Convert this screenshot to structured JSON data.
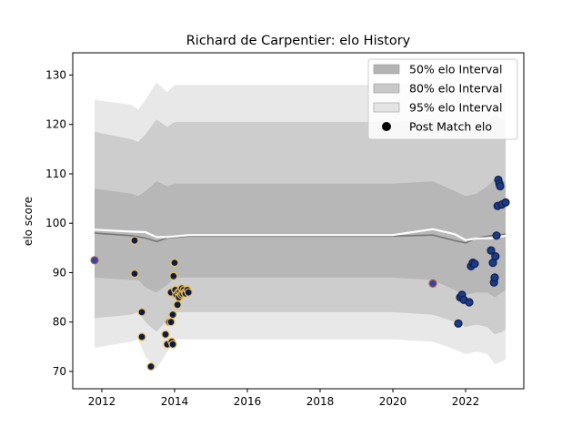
{
  "chart_data": {
    "type": "scatter",
    "title": "Richard de Carpentier: elo History",
    "xlabel": "",
    "ylabel": "elo score",
    "xlim": [
      2011.2,
      2023.6
    ],
    "ylim": [
      66.5,
      134.5
    ],
    "x_ticks": [
      2012,
      2014,
      2016,
      2018,
      2020,
      2022
    ],
    "y_ticks": [
      70,
      80,
      90,
      100,
      110,
      120,
      130
    ],
    "grid": false,
    "legend_position": "top-right",
    "legend": [
      {
        "label": "50% elo Interval",
        "kind": "band",
        "color": "#b3b3b3"
      },
      {
        "label": "80% elo Interval",
        "kind": "band",
        "color": "#c8c8c8"
      },
      {
        "label": "95% elo Interval",
        "kind": "band",
        "color": "#e4e4e4"
      },
      {
        "label": "Post Match elo",
        "kind": "marker",
        "color": "#000000"
      }
    ],
    "band_x": [
      2011.8,
      2012.8,
      2013.0,
      2013.2,
      2013.5,
      2013.8,
      2014.0,
      2014.4,
      2016,
      2018,
      2020,
      2021.1,
      2021.7,
      2022.0,
      2022.3,
      2022.6,
      2022.8,
      2023.0,
      2023.1
    ],
    "intervals": {
      "p95": {
        "lower": [
          74.8,
          76.0,
          76.5,
          73.0,
          70.5,
          74.0,
          76.5,
          76.5,
          76.5,
          76.5,
          76.5,
          76.0,
          74.5,
          73.5,
          74.0,
          73.5,
          71.5,
          72.0,
          72.5
        ],
        "upper": [
          125.0,
          124.0,
          123.0,
          125.0,
          128.5,
          126.5,
          128.0,
          128.0,
          128.0,
          128.0,
          128.0,
          128.5,
          126.5,
          126.5,
          126.5,
          127.5,
          129.0,
          127.5,
          127.5
        ]
      },
      "p80": {
        "lower": [
          80.8,
          81.5,
          82.0,
          80.0,
          78.0,
          80.5,
          82.0,
          82.0,
          82.0,
          82.0,
          82.0,
          81.5,
          80.0,
          79.0,
          79.5,
          79.0,
          77.5,
          78.0,
          78.5
        ],
        "upper": [
          118.5,
          117.0,
          116.5,
          118.0,
          121.0,
          119.5,
          120.5,
          120.5,
          120.5,
          120.5,
          120.5,
          121.0,
          119.5,
          119.5,
          119.5,
          120.5,
          122.0,
          121.0,
          121.0
        ]
      },
      "p50": {
        "lower": [
          89.0,
          88.5,
          88.5,
          87.0,
          86.0,
          87.5,
          89.0,
          89.0,
          89.0,
          89.0,
          89.0,
          88.5,
          86.5,
          85.5,
          86.0,
          86.0,
          85.0,
          86.0,
          86.5
        ],
        "upper": [
          107.0,
          106.0,
          105.5,
          106.5,
          108.5,
          107.5,
          108.0,
          108.0,
          108.0,
          108.0,
          108.0,
          108.5,
          106.5,
          105.5,
          106.0,
          107.5,
          109.0,
          108.5,
          108.5
        ]
      }
    },
    "mean_line": {
      "x": [
        2011.8,
        2012.8,
        2013.2,
        2013.5,
        2013.8,
        2014.4,
        2016,
        2018,
        2020,
        2021.1,
        2021.7,
        2022.0,
        2022.3,
        2022.8,
        2023.1
      ],
      "y": [
        98.0,
        97.5,
        97.0,
        96.3,
        97.0,
        97.4,
        97.4,
        97.4,
        97.4,
        97.6,
        96.5,
        96.0,
        97.0,
        97.6,
        97.8
      ],
      "color": "#777777"
    },
    "upper_line": {
      "x": [
        2011.8,
        2012.8,
        2013.2,
        2013.5,
        2013.8,
        2014.4,
        2016,
        2018,
        2020,
        2021.1,
        2021.7,
        2022.0,
        2022.3,
        2022.8,
        2023.1
      ],
      "y": [
        98.7,
        98.3,
        98.2,
        97.2,
        97.2,
        97.6,
        97.6,
        97.6,
        97.6,
        98.8,
        97.8,
        96.6,
        96.9,
        97.0,
        97.5
      ],
      "color": "#ffffff"
    },
    "series": [
      {
        "marker_fill": "#0d1b4a",
        "marker_edge": "#f0c050",
        "x": [
          2012.9,
          2012.9,
          2013.1,
          2013.1,
          2013.35,
          2013.75,
          2013.8,
          2013.85,
          2013.9,
          2013.9,
          2013.92,
          2013.95,
          2013.97,
          2014.0,
          2014.02,
          2014.05,
          2014.08,
          2014.1,
          2014.12,
          2014.15,
          2014.18,
          2014.2,
          2014.22,
          2014.25,
          2014.28,
          2014.3,
          2014.35,
          2014.38,
          2013.95
        ],
        "y": [
          96.5,
          89.8,
          82.0,
          77.0,
          71.0,
          77.5,
          75.5,
          80.0,
          80.0,
          86.0,
          76.0,
          81.5,
          89.3,
          92.0,
          86.5,
          85.5,
          83.5,
          86.0,
          85.0,
          86.2,
          85.5,
          86.8,
          85.8,
          86.5,
          86.0,
          85.8,
          86.5,
          86.0,
          75.5
        ]
      },
      {
        "marker_fill": "#1a3a8a",
        "marker_edge": "#10204a",
        "x": [
          2021.8,
          2021.85,
          2021.9,
          2021.95,
          2022.1,
          2022.15,
          2022.2,
          2022.25,
          2022.7,
          2022.75,
          2022.78,
          2022.8,
          2022.82,
          2022.85,
          2022.88,
          2022.9,
          2022.93,
          2022.95,
          2023.0,
          2023.1
        ],
        "y": [
          79.7,
          85.0,
          85.5,
          84.5,
          84.0,
          91.3,
          92.0,
          91.8,
          94.5,
          92.0,
          88.0,
          89.0,
          93.3,
          97.5,
          103.5,
          108.8,
          108.0,
          107.5,
          103.8,
          104.2
        ]
      },
      {
        "marker_fill": "#2a4a9a",
        "marker_edge": "#c0504d",
        "x": [
          2011.8,
          2021.1
        ],
        "y": [
          92.5,
          87.8
        ]
      }
    ]
  }
}
